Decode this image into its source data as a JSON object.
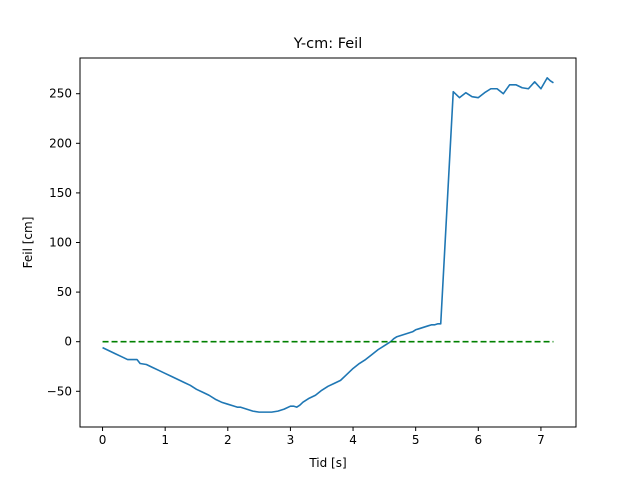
{
  "chart_data": {
    "type": "line",
    "title": "Y-cm: Feil",
    "xlabel": "Tid [s]",
    "ylabel": "Feil [cm]",
    "xlim": [
      -0.36,
      7.56
    ],
    "ylim": [
      -86,
      286
    ],
    "xticks": [
      0,
      1,
      2,
      3,
      4,
      5,
      6,
      7
    ],
    "yticks": [
      -50,
      0,
      50,
      100,
      150,
      200,
      250
    ],
    "grid": false,
    "series": [
      {
        "color": "#1f77b4",
        "style": "solid",
        "x": [
          0.0,
          0.1,
          0.2,
          0.3,
          0.4,
          0.5,
          0.55,
          0.6,
          0.7,
          0.8,
          0.9,
          1.0,
          1.1,
          1.2,
          1.3,
          1.4,
          1.5,
          1.6,
          1.7,
          1.8,
          1.9,
          2.0,
          2.1,
          2.15,
          2.2,
          2.3,
          2.4,
          2.5,
          2.6,
          2.7,
          2.8,
          2.9,
          3.0,
          3.05,
          3.1,
          3.15,
          3.2,
          3.3,
          3.4,
          3.5,
          3.6,
          3.7,
          3.8,
          3.9,
          4.0,
          4.1,
          4.2,
          4.3,
          4.4,
          4.5,
          4.6,
          4.65,
          4.7,
          4.75,
          4.8,
          4.85,
          4.9,
          4.95,
          5.0,
          5.05,
          5.1,
          5.15,
          5.2,
          5.25,
          5.3,
          5.35,
          5.4,
          5.6,
          5.7,
          5.8,
          5.9,
          6.0,
          6.1,
          6.2,
          6.3,
          6.4,
          6.5,
          6.6,
          6.7,
          6.8,
          6.9,
          7.0,
          7.1,
          7.15,
          7.2
        ],
        "y": [
          -6,
          -9,
          -12,
          -15,
          -18,
          -18,
          -18,
          -22,
          -23,
          -26,
          -29,
          -32,
          -35,
          -38,
          -41,
          -44,
          -48,
          -51,
          -54,
          -58,
          -61,
          -63,
          -65,
          -66,
          -66,
          -68,
          -70,
          -71,
          -71,
          -71,
          -70,
          -68,
          -65,
          -65,
          -66,
          -64,
          -61,
          -57,
          -54,
          -49,
          -45,
          -42,
          -39,
          -33,
          -27,
          -22,
          -18,
          -13,
          -8,
          -4,
          0,
          3,
          5,
          6,
          7,
          8,
          9,
          10,
          12,
          13,
          14,
          15,
          16,
          17,
          17,
          18,
          18,
          252,
          246,
          251,
          247,
          246,
          251,
          255,
          255,
          250,
          259,
          259,
          256,
          255,
          262,
          255,
          266,
          263,
          261
        ]
      },
      {
        "color": "#008000",
        "style": "dashed",
        "x": [
          0.0,
          7.2
        ],
        "y": [
          0,
          0
        ]
      }
    ]
  }
}
